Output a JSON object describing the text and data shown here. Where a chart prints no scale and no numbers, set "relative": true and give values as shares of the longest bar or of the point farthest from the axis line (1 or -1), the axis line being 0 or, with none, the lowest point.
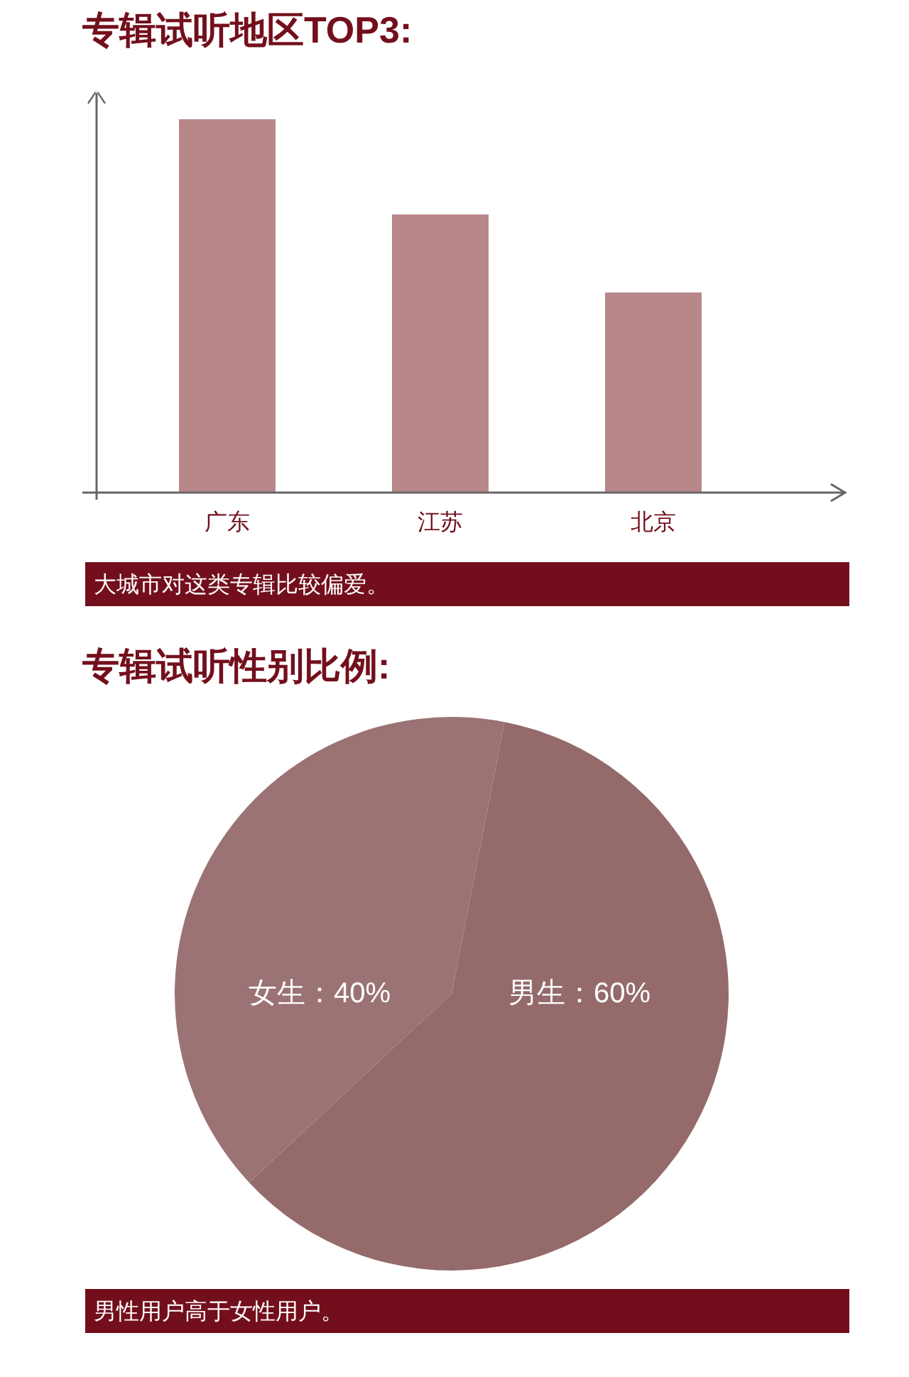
{
  "chart_data": [
    {
      "type": "bar",
      "title": "专辑试听地区TOP3:",
      "categories": [
        "广东",
        "江苏",
        "北京"
      ],
      "values": [
        1,
        0.745,
        0.536
      ],
      "relative": true,
      "color": "#b8878a",
      "annotations": [
        "大城市对这类专辑比较偏爱。"
      ]
    },
    {
      "type": "pie",
      "title": "专辑试听性别比例:",
      "categories": [
        "男生",
        "女生"
      ],
      "values": [
        60,
        40
      ],
      "colors": [
        "#946a6a",
        "#9b7374"
      ],
      "value_labels": [
        "：60%",
        "：40%"
      ],
      "annotations": [
        "男性用户高于女性用户。"
      ]
    }
  ]
}
